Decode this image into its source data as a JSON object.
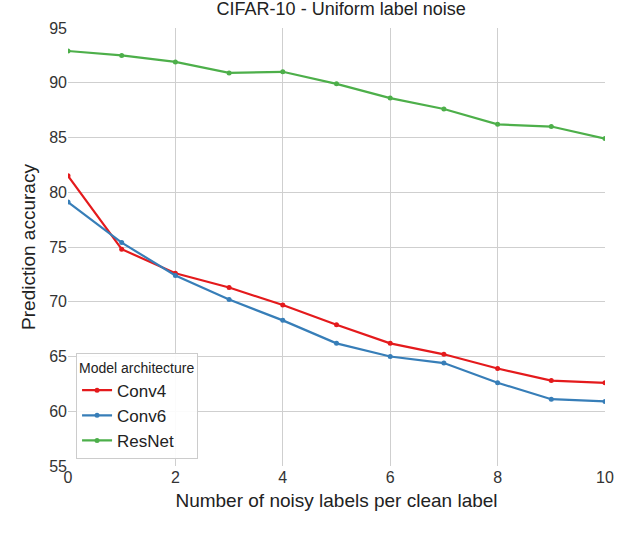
{
  "chart_data": {
    "type": "line",
    "title": "CIFAR-10 - Uniform label noise",
    "x_label": "Number of noisy labels per clean label",
    "y_label": "Prediction accuracy",
    "legend_title": "Model architecture",
    "x": [
      0,
      1,
      2,
      3,
      4,
      5,
      6,
      7,
      8,
      9,
      10
    ],
    "series": [
      {
        "name": "Conv4",
        "color": "#e41a1c",
        "marker": "circle",
        "line_style": "solid",
        "values": [
          81.5,
          74.8,
          72.6,
          71.3,
          69.7,
          67.9,
          66.2,
          65.2,
          63.9,
          62.8,
          62.6
        ]
      },
      {
        "name": "Conv6",
        "color": "#377eb8",
        "marker": "circle",
        "line_style": "solid",
        "values": [
          79.1,
          75.4,
          72.4,
          70.2,
          68.3,
          66.2,
          65.0,
          64.4,
          62.6,
          61.1,
          60.9
        ]
      },
      {
        "name": "ResNet",
        "color": "#4daf4a",
        "marker": "circle",
        "line_style": "solid",
        "values": [
          92.9,
          92.5,
          91.9,
          90.9,
          91.0,
          89.9,
          88.6,
          87.6,
          86.2,
          86.0,
          84.9
        ]
      }
    ],
    "xlim": [
      0,
      10
    ],
    "xticks": [
      0,
      2,
      4,
      6,
      8,
      10
    ],
    "ylim": [
      55,
      95
    ],
    "yticks": [
      55,
      60,
      65,
      70,
      75,
      80,
      85,
      90,
      95
    ],
    "grid": true,
    "legend": "lower left"
  }
}
